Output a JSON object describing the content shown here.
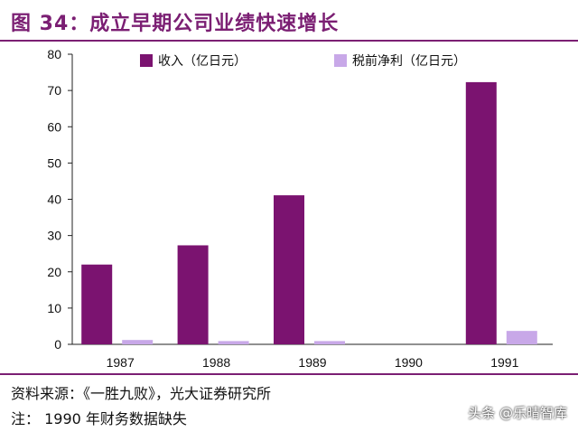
{
  "figure": {
    "title": "图 34：成立早期公司业绩快速增长",
    "source": "资料来源：《一胜九败》，光大证券研究所",
    "note": "注： 1990 年财务数据缺失",
    "watermark": "头条 @乐晴智库"
  },
  "chart_data": {
    "type": "bar",
    "categories": [
      "1987",
      "1988",
      "1989",
      "1990",
      "1991"
    ],
    "series": [
      {
        "name": "收入（亿日元）",
        "color": "#7b1370",
        "values": [
          22,
          27.3,
          41.1,
          null,
          72.3
        ]
      },
      {
        "name": "税前净利（亿日元）",
        "color": "#c8a8e8",
        "values": [
          1.2,
          0.9,
          0.9,
          null,
          3.7
        ]
      }
    ],
    "ylim": [
      0,
      80
    ],
    "yticks": [
      "0",
      "10",
      "20",
      "30",
      "40",
      "50",
      "60",
      "70",
      "80"
    ],
    "legend_position": "top",
    "grid": false
  }
}
